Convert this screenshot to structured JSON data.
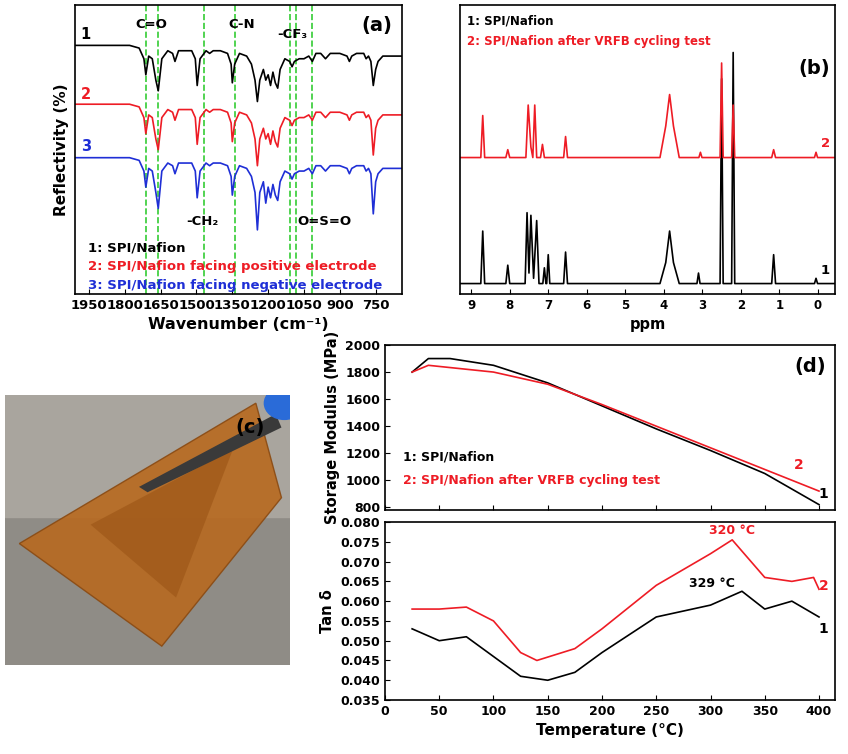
{
  "chart_data": [
    {
      "type": "line",
      "panel_label": "(a)",
      "xlabel": "Wavenumber (cm⁻¹)",
      "ylabel": "Reflectivity (%)",
      "xlim": [
        2010,
        640
      ],
      "xticks": [
        1950,
        1800,
        1650,
        1500,
        1350,
        1200,
        1050,
        900,
        750
      ],
      "ylim": [
        0,
        108
      ],
      "tick_labels": "x",
      "reference_lines": {
        "color": "#33cc33",
        "line_style": "dashed",
        "x": [
          1712,
          1660,
          1470,
          1340,
          1110,
          1085,
          1015
        ]
      },
      "annotations": [
        {
          "text": "C=O",
          "color": "#000000"
        },
        {
          "text": "C-N",
          "color": "#000000"
        },
        {
          "text": "-CF₃",
          "color": "#000000"
        },
        {
          "text": "-CH₂",
          "color": "#000000"
        },
        {
          "text": "O=S=O",
          "color": "#000000"
        }
      ],
      "series": [
        {
          "name": "1: SPI/Nafion",
          "label": "1",
          "color": "#000000",
          "x": [
            2010,
            1780,
            1740,
            1720,
            1712,
            1700,
            1685,
            1670,
            1660,
            1645,
            1620,
            1600,
            1590,
            1575,
            1520,
            1505,
            1497,
            1485,
            1460,
            1445,
            1430,
            1400,
            1370,
            1355,
            1350,
            1340,
            1320,
            1290,
            1270,
            1255,
            1245,
            1235,
            1220,
            1210,
            1200,
            1190,
            1180,
            1170,
            1160,
            1150,
            1130,
            1110,
            1100,
            1090,
            1070,
            1050,
            1030,
            1015,
            1000,
            980,
            960,
            940,
            900,
            870,
            860,
            850,
            830,
            800,
            790,
            780,
            770,
            760,
            750,
            740,
            720,
            700,
            680,
            640
          ],
          "values": [
            93,
            93,
            92,
            88,
            82,
            89,
            88,
            80,
            76,
            88,
            91,
            90,
            87,
            91,
            91,
            88,
            78,
            88,
            91,
            90,
            91,
            91,
            90,
            86,
            79,
            86,
            90,
            89,
            86,
            80,
            72,
            80,
            84,
            80,
            82,
            78,
            83,
            79,
            77,
            84,
            88,
            87,
            85,
            87,
            88,
            88,
            89,
            87,
            90,
            90,
            88,
            90,
            90,
            89,
            87,
            89,
            90,
            90,
            88,
            89,
            87,
            78,
            84,
            87,
            89,
            89,
            89,
            89
          ]
        },
        {
          "name": "2: SPI/Nafion facing positive electrode",
          "label": "2",
          "color": "#ee1c25",
          "x": [
            2010,
            1780,
            1740,
            1720,
            1712,
            1700,
            1685,
            1670,
            1660,
            1645,
            1620,
            1600,
            1590,
            1575,
            1520,
            1505,
            1497,
            1485,
            1460,
            1445,
            1430,
            1400,
            1370,
            1355,
            1350,
            1340,
            1320,
            1290,
            1270,
            1255,
            1245,
            1235,
            1220,
            1210,
            1200,
            1190,
            1180,
            1170,
            1160,
            1150,
            1130,
            1110,
            1100,
            1090,
            1070,
            1050,
            1030,
            1015,
            1000,
            980,
            960,
            940,
            900,
            870,
            860,
            850,
            830,
            800,
            790,
            780,
            770,
            760,
            750,
            740,
            720,
            700,
            680,
            640
          ],
          "values": [
            71,
            71,
            70,
            66,
            60,
            67,
            66,
            58,
            54,
            66,
            69,
            68,
            65,
            69,
            69,
            66,
            56,
            66,
            69,
            68,
            69,
            69,
            68,
            64,
            57,
            64,
            68,
            67,
            64,
            58,
            48,
            58,
            62,
            58,
            60,
            56,
            61,
            57,
            55,
            62,
            66,
            65,
            63,
            65,
            66,
            66,
            67,
            65,
            68,
            68,
            66,
            68,
            68,
            67,
            65,
            67,
            68,
            68,
            66,
            67,
            65,
            52,
            62,
            65,
            67,
            67,
            67,
            67
          ]
        },
        {
          "name": "3: SPI/Nafion facing negative electrode",
          "label": "3",
          "color": "#1f2fd6",
          "x": [
            2010,
            1780,
            1740,
            1720,
            1712,
            1700,
            1685,
            1670,
            1660,
            1645,
            1620,
            1600,
            1590,
            1575,
            1520,
            1505,
            1497,
            1485,
            1460,
            1445,
            1430,
            1400,
            1370,
            1355,
            1350,
            1340,
            1320,
            1290,
            1270,
            1255,
            1245,
            1235,
            1220,
            1210,
            1200,
            1190,
            1180,
            1170,
            1160,
            1150,
            1130,
            1110,
            1100,
            1090,
            1070,
            1050,
            1030,
            1015,
            1000,
            980,
            960,
            940,
            900,
            870,
            860,
            850,
            830,
            800,
            790,
            780,
            770,
            760,
            750,
            740,
            720,
            700,
            680,
            640
          ],
          "values": [
            51,
            51,
            50,
            46,
            40,
            47,
            46,
            38,
            32,
            46,
            49,
            48,
            45,
            49,
            49,
            46,
            36,
            46,
            49,
            48,
            49,
            49,
            48,
            44,
            37,
            44,
            48,
            47,
            44,
            38,
            24,
            38,
            42,
            34,
            40,
            36,
            41,
            37,
            35,
            42,
            46,
            45,
            43,
            45,
            46,
            46,
            47,
            45,
            48,
            48,
            46,
            48,
            48,
            47,
            45,
            47,
            48,
            48,
            46,
            47,
            45,
            30,
            42,
            45,
            47,
            47,
            47,
            47
          ]
        }
      ]
    },
    {
      "type": "line",
      "panel_label": "(b)",
      "xlabel": "ppm",
      "xlim": [
        9.3,
        -0.45
      ],
      "xticks": [
        9,
        8,
        7,
        6,
        5,
        4,
        3,
        2,
        1,
        0
      ],
      "ylim": [
        0,
        110
      ],
      "tick_labels": "x",
      "series": [
        {
          "name": "1: SPI/Nafion",
          "label": "1",
          "color": "#000000",
          "x": [
            9.3,
            8.75,
            8.7,
            8.65,
            8.1,
            8.05,
            8.0,
            7.6,
            7.55,
            7.5,
            7.45,
            7.38,
            7.3,
            7.24,
            7.14,
            7.1,
            7.06,
            7.04,
            7.0,
            6.96,
            6.6,
            6.55,
            6.5,
            4.1,
            3.95,
            3.85,
            3.75,
            3.6,
            3.14,
            3.1,
            3.06,
            2.54,
            2.5,
            2.46,
            2.24,
            2.2,
            2.16,
            1.2,
            1.15,
            1.1,
            0.09,
            0.05,
            0.01,
            -0.45
          ],
          "values": [
            4,
            4,
            24,
            4,
            4,
            11,
            4,
            4,
            31,
            8,
            30,
            6,
            28,
            4,
            4,
            10,
            4,
            4,
            15,
            4,
            4,
            16,
            4,
            4,
            12,
            24,
            12,
            4,
            4,
            8,
            4,
            4,
            82,
            4,
            4,
            92,
            4,
            4,
            15,
            4,
            4,
            6,
            4,
            4
          ]
        },
        {
          "name": "2: SPI/Nafion after VRFB cycling test",
          "label": "2",
          "color": "#ee1c25",
          "x": [
            9.3,
            8.75,
            8.7,
            8.65,
            8.1,
            8.05,
            8.0,
            7.58,
            7.52,
            7.45,
            7.4,
            7.35,
            7.3,
            7.2,
            7.15,
            7.1,
            6.6,
            6.55,
            6.5,
            4.1,
            3.95,
            3.85,
            3.75,
            3.6,
            3.09,
            3.05,
            3.01,
            2.54,
            2.5,
            2.46,
            2.24,
            2.2,
            2.16,
            1.2,
            1.15,
            1.1,
            0.09,
            0.05,
            0.01,
            -0.45
          ],
          "values": [
            52,
            52,
            68,
            52,
            52,
            55,
            52,
            52,
            72,
            56,
            52,
            72,
            52,
            52,
            57,
            52,
            52,
            60,
            52,
            52,
            64,
            76,
            64,
            52,
            52,
            54,
            52,
            52,
            88,
            52,
            52,
            72,
            52,
            52,
            55,
            52,
            52,
            54,
            52,
            52
          ]
        }
      ]
    },
    {
      "type": "image",
      "panel_label": "(c)"
    },
    {
      "type": "line",
      "panel_label": "(d)",
      "ylabel": "Storage Modulus (MPa)",
      "xlim": [
        0,
        415
      ],
      "xticks": [
        0,
        50,
        100,
        150,
        200,
        250,
        300,
        350,
        400
      ],
      "ylim": [
        780,
        2000
      ],
      "yticks": [
        800,
        1000,
        1200,
        1400,
        1600,
        1800,
        2000
      ],
      "tick_labels": "y",
      "series": [
        {
          "name": "1: SPI/Nafion",
          "label": "1",
          "color": "#000000",
          "x": [
            25,
            40,
            60,
            100,
            150,
            200,
            250,
            300,
            350,
            400
          ],
          "values": [
            1800,
            1900,
            1900,
            1850,
            1720,
            1550,
            1380,
            1220,
            1050,
            820
          ]
        },
        {
          "name": "2: SPI/Nafion after VRFB cycling test",
          "label": "2",
          "color": "#ee1c25",
          "x": [
            25,
            40,
            100,
            150,
            200,
            250,
            300,
            350,
            400
          ],
          "values": [
            1800,
            1850,
            1800,
            1710,
            1560,
            1400,
            1240,
            1080,
            920
          ]
        }
      ]
    },
    {
      "type": "line",
      "xlabel": "Temperature (°C)",
      "ylabel": "Tan δ",
      "xlim": [
        0,
        415
      ],
      "xticks": [
        0,
        50,
        100,
        150,
        200,
        250,
        300,
        350,
        400
      ],
      "ylim": [
        0.035,
        0.08
      ],
      "yticks": [
        0.035,
        {
          "value": 0.04,
          "label": "0.040"
        },
        0.045,
        {
          "value": 0.05,
          "label": "0.050"
        },
        0.055,
        {
          "value": 0.06,
          "label": "0.060"
        },
        0.065,
        {
          "value": 0.07,
          "label": "0.070"
        },
        0.075,
        {
          "value": 0.08,
          "label": "0.080"
        }
      ],
      "annotations": [
        {
          "text": "320 °C",
          "color": "#ee1c25"
        },
        {
          "text": "329 °C",
          "color": "#000000"
        }
      ],
      "series": [
        {
          "label": "1",
          "color": "#000000",
          "x": [
            25,
            50,
            75,
            100,
            125,
            150,
            175,
            200,
            250,
            300,
            329,
            350,
            375,
            400
          ],
          "values": [
            0.053,
            0.05,
            0.051,
            0.046,
            0.041,
            0.04,
            0.042,
            0.047,
            0.056,
            0.059,
            0.0625,
            0.058,
            0.06,
            0.056
          ]
        },
        {
          "label": "2",
          "color": "#ee1c25",
          "x": [
            25,
            50,
            75,
            100,
            125,
            140,
            175,
            200,
            250,
            300,
            320,
            350,
            375,
            395,
            400
          ],
          "values": [
            0.058,
            0.058,
            0.0585,
            0.055,
            0.047,
            0.045,
            0.048,
            0.053,
            0.064,
            0.072,
            0.0755,
            0.066,
            0.065,
            0.066,
            0.063
          ]
        }
      ]
    }
  ]
}
